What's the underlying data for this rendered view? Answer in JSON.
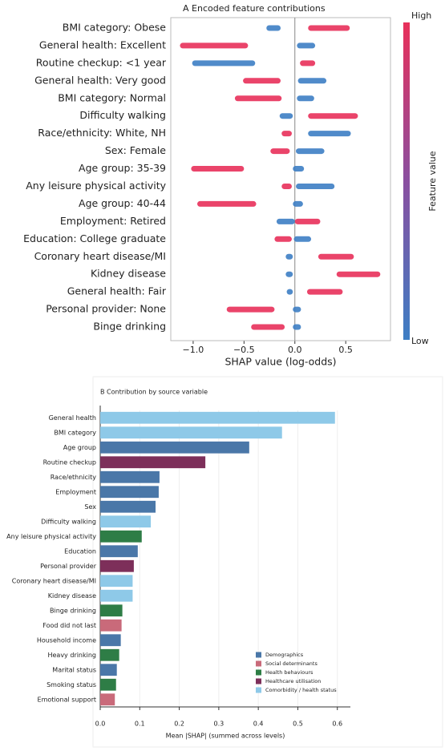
{
  "chart_data": [
    {
      "type": "beeswarm",
      "title": "A  Encoded feature contributions",
      "xlabel": "SHAP value (log-odds)",
      "colorbar_label": "Feature value",
      "categories": [
        "BMI category: Obese",
        "General health: Excellent",
        "Routine checkup: <1 year",
        "General health: Very good",
        "BMI category: Normal",
        "Difficulty walking",
        "Race/ethnicity: White, NH",
        "Sex: Female",
        "Age group: 35-39",
        "Any leisure physical activity",
        "Age group: 40-44",
        "Employment: Retired",
        "Education: College graduate",
        "Coronary heart disease/MI",
        "Kidney disease",
        "General health: Fair",
        "Personal provider: None",
        "Binge drinking"
      ],
      "series": [
        {
          "name": "High",
          "color": "#e8305a",
          "values": [
            [
              0.13,
              0.54
            ],
            [
              -1.13,
              -0.46
            ],
            [
              0.05,
              0.2
            ],
            [
              -0.51,
              -0.14
            ],
            [
              -0.59,
              -0.13
            ],
            [
              0.13,
              0.62
            ],
            [
              -0.13,
              -0.03
            ],
            [
              -0.24,
              -0.05
            ],
            [
              -1.02,
              -0.5
            ],
            [
              -0.13,
              -0.03
            ],
            [
              -0.96,
              -0.38
            ],
            [
              0.0,
              0.25
            ],
            [
              -0.2,
              -0.03
            ],
            [
              0.23,
              0.58
            ],
            [
              0.41,
              0.84
            ],
            [
              0.12,
              0.47
            ],
            [
              -0.67,
              -0.2
            ],
            [
              -0.43,
              -0.1
            ]
          ]
        },
        {
          "name": "Low",
          "color": "#3d7ec4",
          "values": [
            [
              -0.28,
              -0.14
            ],
            [
              0.02,
              0.2
            ],
            [
              -1.01,
              -0.39
            ],
            [
              0.03,
              0.31
            ],
            [
              0.02,
              0.19
            ],
            [
              -0.15,
              -0.02
            ],
            [
              0.13,
              0.55
            ],
            [
              0.01,
              0.29
            ],
            [
              -0.02,
              0.09
            ],
            [
              0.01,
              0.39
            ],
            [
              -0.02,
              0.08
            ],
            [
              -0.18,
              0.0
            ],
            [
              -0.01,
              0.16
            ],
            [
              -0.09,
              -0.02
            ],
            [
              -0.09,
              -0.02
            ],
            [
              -0.08,
              -0.02
            ],
            [
              -0.02,
              0.06
            ],
            [
              -0.02,
              0.06
            ]
          ]
        }
      ],
      "xlim": [
        -1.22,
        0.94
      ],
      "xticks": [
        {
          "value": -1.0,
          "label": "−1.0"
        },
        {
          "value": -0.5,
          "label": "−0.5"
        },
        {
          "value": 0,
          "label": "0.0"
        },
        {
          "value": 0.5,
          "label": "0.5"
        }
      ]
    },
    {
      "type": "bar",
      "title": "B  Contribution by source variable",
      "xlabel": "Mean |SHAP| (summed across levels)",
      "categories": [
        "General health",
        "BMI category",
        "Age group",
        "Routine checkup",
        "Race/ethnicity",
        "Employment",
        "Sex",
        "Difficulty walking",
        "Any leisure physical activity",
        "Education",
        "Personal provider",
        "Coronary heart disease/MI",
        "Kidney disease",
        "Binge drinking",
        "Food did not last",
        "Household income",
        "Heavy drinking",
        "Marital status",
        "Smoking status",
        "Emotional support"
      ],
      "series": [
        {
          "name": "Demographics",
          "color": "#4a77a8",
          "values": [
            null,
            null,
            0.377,
            null,
            0.15,
            0.148,
            0.14,
            null,
            null,
            0.095,
            null,
            null,
            null,
            null,
            null,
            0.052,
            null,
            0.042,
            null,
            null
          ]
        },
        {
          "name": "Social determinants",
          "color": "#c96a7a",
          "values": [
            null,
            null,
            null,
            null,
            null,
            null,
            null,
            null,
            null,
            null,
            null,
            null,
            null,
            null,
            0.054,
            null,
            null,
            null,
            null,
            0.037
          ]
        },
        {
          "name": "Health behaviours",
          "color": "#2e7d46",
          "values": [
            null,
            null,
            null,
            null,
            null,
            null,
            null,
            null,
            0.105,
            null,
            null,
            null,
            null,
            0.056,
            null,
            null,
            0.048,
            null,
            0.04,
            null
          ]
        },
        {
          "name": "Healthcare utilisation",
          "color": "#7d2f5a",
          "values": [
            null,
            null,
            null,
            0.266,
            null,
            null,
            null,
            null,
            null,
            null,
            0.085,
            null,
            null,
            null,
            null,
            null,
            null,
            null,
            null,
            null
          ]
        },
        {
          "name": "Comorbidity / health status",
          "color": "#8ec9e8",
          "values": [
            0.594,
            0.46,
            null,
            null,
            null,
            null,
            null,
            0.128,
            null,
            null,
            null,
            0.082,
            0.082,
            null,
            null,
            null,
            null,
            null,
            null,
            null
          ]
        }
      ],
      "xlim": [
        0,
        0.633
      ],
      "xticks": [
        {
          "value": 0,
          "label": "0.0"
        },
        0.1,
        0.2,
        0.3,
        0.4,
        0.5,
        0.6
      ],
      "grid": true,
      "legend": "lower right"
    }
  ]
}
